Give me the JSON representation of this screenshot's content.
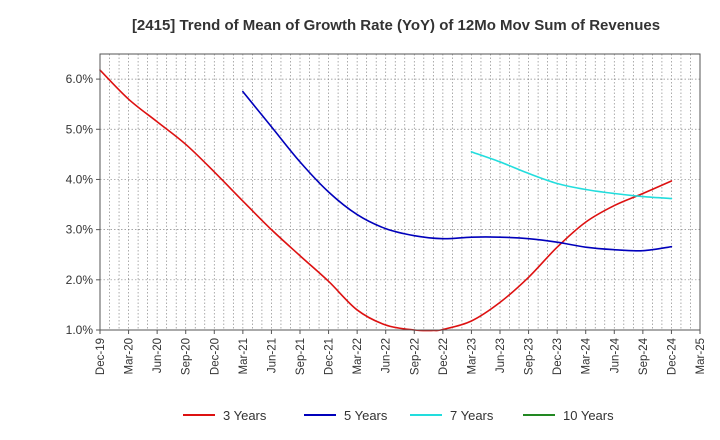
{
  "chart_data": {
    "type": "line",
    "title": "[2415]  Trend of Mean of Growth Rate (YoY) of 12Mo Mov Sum of Revenues",
    "xlabel": "",
    "ylabel": "",
    "ylim": [
      1.0,
      6.5
    ],
    "yticks": [
      "1.0%",
      "2.0%",
      "3.0%",
      "4.0%",
      "5.0%",
      "6.0%"
    ],
    "ytick_values": [
      1.0,
      2.0,
      3.0,
      4.0,
      5.0,
      6.0
    ],
    "x_range_months": [
      0,
      63
    ],
    "xticks": [
      "Dec-19",
      "Mar-20",
      "Jun-20",
      "Sep-20",
      "Dec-20",
      "Mar-21",
      "Jun-21",
      "Sep-21",
      "Dec-21",
      "Mar-22",
      "Jun-22",
      "Sep-22",
      "Dec-22",
      "Mar-23",
      "Jun-23",
      "Sep-23",
      "Dec-23",
      "Mar-24",
      "Jun-24",
      "Sep-24",
      "Dec-24",
      "Mar-25"
    ],
    "xtick_months": [
      0,
      3,
      6,
      9,
      12,
      15,
      18,
      21,
      24,
      27,
      30,
      33,
      36,
      39,
      42,
      45,
      48,
      51,
      54,
      57,
      60,
      63
    ],
    "grid": true,
    "legend_position": "bottom",
    "series": [
      {
        "name": "3 Years",
        "color": "#dd1111",
        "x": [
          0,
          3,
          6,
          9,
          12,
          15,
          18,
          21,
          24,
          27,
          30,
          33,
          35,
          36,
          39,
          42,
          45,
          48,
          51,
          54,
          57,
          60
        ],
        "values": [
          6.18,
          5.6,
          5.15,
          4.7,
          4.15,
          3.57,
          3.0,
          2.48,
          1.97,
          1.4,
          1.1,
          1.0,
          0.99,
          1.01,
          1.18,
          1.55,
          2.05,
          2.65,
          3.15,
          3.48,
          3.72,
          3.97
        ]
      },
      {
        "name": "5 Years",
        "color": "#0000bb",
        "x": [
          15,
          18,
          21,
          24,
          27,
          30,
          33,
          36,
          39,
          42,
          45,
          48,
          51,
          54,
          57,
          60
        ],
        "values": [
          5.75,
          5.05,
          4.35,
          3.75,
          3.3,
          3.02,
          2.88,
          2.82,
          2.85,
          2.85,
          2.82,
          2.75,
          2.65,
          2.6,
          2.58,
          2.66
        ]
      },
      {
        "name": "7 Years",
        "color": "#22dddd",
        "x": [
          39,
          42,
          45,
          48,
          51,
          54,
          57,
          60
        ],
        "values": [
          4.55,
          4.35,
          4.12,
          3.92,
          3.8,
          3.72,
          3.66,
          3.62
        ]
      },
      {
        "name": "10 Years",
        "color": "#228822",
        "x": [],
        "values": []
      }
    ]
  }
}
